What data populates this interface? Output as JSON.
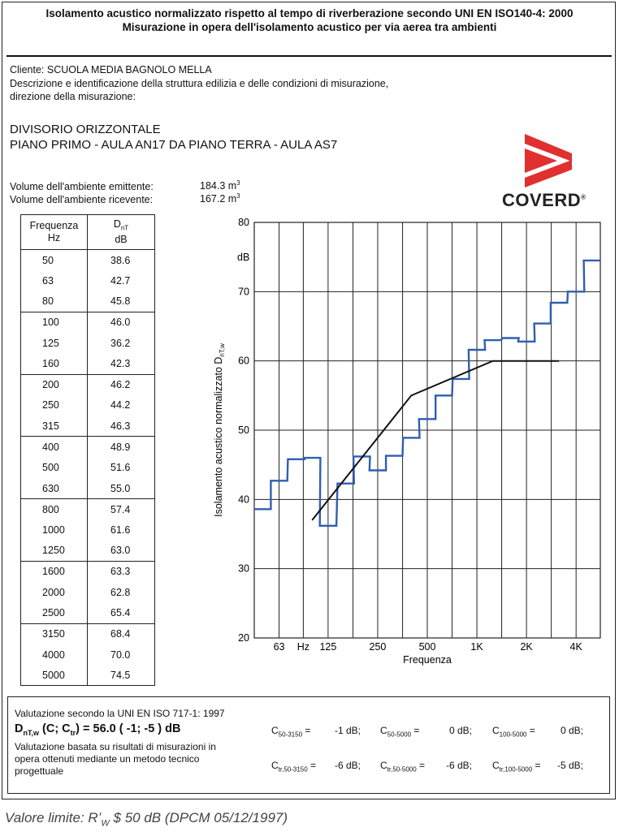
{
  "header": {
    "line1": "Isolamento acustico normalizzato rispetto al tempo di riverberazione secondo UNI EN ISO140-4: 2000",
    "line2": "Misurazione in opera dell'isolamento acustico per via aerea tra ambienti"
  },
  "info": {
    "cliente": "Cliente: SCUOLA MEDIA BAGNOLO MELLA",
    "descr1": "Descrizione e identificazione della struttura edilizia e delle condizioni di misurazione,",
    "descr2": "direzione della misurazione:"
  },
  "title": {
    "line1": "DIVISORIO ORIZZONTALE",
    "line2": "PIANO PRIMO - AULA AN17 DA PIANO TERRA - AULA AS7"
  },
  "volumes": {
    "emit_label": "Volume dell'ambiente emittente:",
    "emit_value": "184.3 m",
    "recv_label": "Volume dell'ambiente ricevente:",
    "recv_value": "167.2 m",
    "unit_exp": "3"
  },
  "logo": {
    "text": "COVERD",
    "mark": "®"
  },
  "table": {
    "col1_line1": "Frequenza",
    "col1_line2": "Hz",
    "col2_main": "D",
    "col2_sub": "nT",
    "col2_line2": "dB",
    "rows": [
      [
        "50",
        "38.6"
      ],
      [
        "63",
        "42.7"
      ],
      [
        "80",
        "45.8"
      ],
      [
        "100",
        "46.0"
      ],
      [
        "125",
        "36.2"
      ],
      [
        "160",
        "42.3"
      ],
      [
        "200",
        "46.2"
      ],
      [
        "250",
        "44.2"
      ],
      [
        "315",
        "46.3"
      ],
      [
        "400",
        "48.9"
      ],
      [
        "500",
        "51.6"
      ],
      [
        "630",
        "55.0"
      ],
      [
        "800",
        "57.4"
      ],
      [
        "1000",
        "61.6"
      ],
      [
        "1250",
        "63.0"
      ],
      [
        "1600",
        "63.3"
      ],
      [
        "2000",
        "62.8"
      ],
      [
        "2500",
        "65.4"
      ],
      [
        "3150",
        "68.4"
      ],
      [
        "4000",
        "70.0"
      ],
      [
        "5000",
        "74.5"
      ]
    ]
  },
  "chart_data": {
    "type": "line",
    "ylabel_main": "Isolamento acustico normalizzato D",
    "ylabel_sub": "nT,w",
    "xlabel": "Frequenza",
    "y_unit": "dB",
    "ylim": [
      20,
      80
    ],
    "yticks": [
      "20",
      "30",
      "40",
      "50",
      "60",
      "70",
      "80"
    ],
    "xtick_labels": [
      "63",
      "Hz",
      "125",
      "250",
      "500",
      "1K",
      "2K",
      "4K"
    ],
    "grid": true,
    "series": [
      {
        "x": [
          50,
          63,
          80,
          100,
          125,
          160,
          200,
          250,
          315,
          400,
          500,
          630,
          800,
          1000,
          1250,
          1600,
          2000,
          2500,
          3150,
          4000,
          5000
        ],
        "values": [
          38.6,
          42.7,
          45.8,
          46.0,
          36.2,
          42.3,
          46.2,
          44.2,
          46.3,
          48.9,
          51.6,
          55.0,
          57.4,
          61.6,
          63.0,
          63.3,
          62.8,
          65.4,
          68.4,
          70.0,
          74.5
        ],
        "color": "#2f5fb0"
      },
      {
        "x": [
          100,
          400,
          1250,
          3150
        ],
        "values": [
          37,
          55,
          60,
          60
        ],
        "color": "#111111"
      }
    ]
  },
  "evaluation": {
    "heading": "Valutazione secondo la UNI EN ISO 717-1: 1997",
    "result_main": "D",
    "result_sub": "nT,w",
    "result_mid": " (C; C",
    "result_sub2": "tr",
    "result_tail": ") = 56.0   ( -1; -5 ) dB",
    "note1": "Valutazione basata su risultati di misurazioni in",
    "note2": "opera ottenuti mediante un metodo tecnico",
    "note3": "progettuale",
    "c1_lbl": "C",
    "c1_sub": "50-3150",
    "c1_val": "-1 dB;",
    "c2_lbl": "C",
    "c2_sub": "50-5000",
    "c2_val": "0 dB;",
    "c3_lbl": "C",
    "c3_sub": "100-5000",
    "c3_val": "0 dB;",
    "c4_lbl": "C",
    "c4_sub": "tr,50-3150",
    "c4_val": "-6 dB;",
    "c5_lbl": "C",
    "c5_sub": "tr,50-5000",
    "c5_val": "-6 dB;",
    "c6_lbl": "C",
    "c6_sub": "tr,100-5000",
    "c6_val": "-5 dB;",
    "eq": "="
  },
  "footer": {
    "pre": "Valore limite: R’",
    "sub": "W",
    "post": "  $  50 dB (DPCM 05/12/1997)"
  }
}
